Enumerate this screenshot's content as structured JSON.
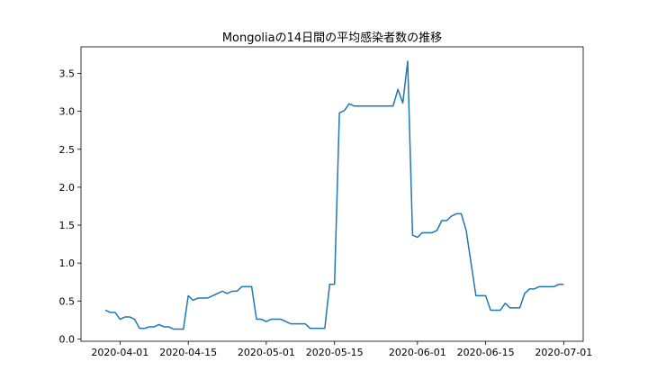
{
  "chart_data": {
    "type": "line",
    "title": "Mongoliaの14日間の平均感染者数の推移",
    "xlabel": "",
    "ylabel": "",
    "x_start": "2020-03-29",
    "x_end": "2020-06-30",
    "xlim": [
      "2020-03-24",
      "2020-07-05"
    ],
    "ylim": [
      -0.03,
      3.85
    ],
    "x_ticks": [
      "2020-04-01",
      "2020-04-15",
      "2020-05-01",
      "2020-05-15",
      "2020-06-01",
      "2020-06-15",
      "2020-07-01"
    ],
    "y_ticks": [
      0.0,
      0.5,
      1.0,
      1.5,
      2.0,
      2.5,
      3.0,
      3.5
    ],
    "y_tick_labels": [
      "0.0",
      "0.5",
      "1.0",
      "1.5",
      "2.0",
      "2.5",
      "3.0",
      "3.5"
    ],
    "grid": false,
    "line_color": "#1f77b4",
    "series": [
      {
        "values": [
          0.38,
          0.35,
          0.35,
          0.26,
          0.29,
          0.29,
          0.26,
          0.14,
          0.14,
          0.16,
          0.16,
          0.19,
          0.16,
          0.16,
          0.13,
          0.13,
          0.13,
          0.57,
          0.51,
          0.54,
          0.54,
          0.54,
          0.57,
          0.6,
          0.63,
          0.6,
          0.63,
          0.63,
          0.69,
          0.69,
          0.69,
          0.26,
          0.26,
          0.23,
          0.26,
          0.26,
          0.26,
          0.23,
          0.2,
          0.2,
          0.2,
          0.2,
          0.14,
          0.14,
          0.14,
          0.14,
          0.72,
          0.72,
          2.98,
          3.01,
          3.1,
          3.07,
          3.07,
          3.07,
          3.07,
          3.07,
          3.07,
          3.07,
          3.07,
          3.07,
          3.29,
          3.11,
          3.66,
          1.37,
          1.34,
          1.4,
          1.4,
          1.4,
          1.43,
          1.56,
          1.56,
          1.62,
          1.65,
          1.65,
          1.43,
          1.0,
          0.57,
          0.57,
          0.57,
          0.38,
          0.38,
          0.38,
          0.47,
          0.41,
          0.41,
          0.41,
          0.6,
          0.66,
          0.66,
          0.69,
          0.69,
          0.69,
          0.69,
          0.72,
          0.72
        ]
      }
    ]
  }
}
